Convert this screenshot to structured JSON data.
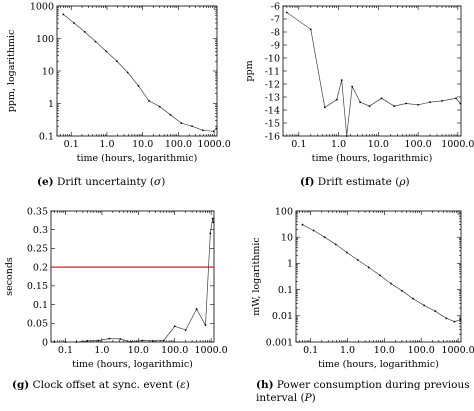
{
  "colors": {
    "line": "#404040",
    "frame": "#000000",
    "reference_line": "#cc2222"
  },
  "chart_data": [
    {
      "id": "e",
      "type": "line",
      "xscale": "log",
      "yscale": "log",
      "xlabel": "time (hours, logarithmic)",
      "ylabel": "ppm, logarithmic",
      "xlim": [
        0.04,
        1200
      ],
      "ylim": [
        0.1,
        1000
      ],
      "xticks": [
        "0.1",
        "1.0",
        "10.0",
        "100.0",
        "1000.0"
      ],
      "yticks": [
        "0.1",
        "1",
        "10",
        "100",
        "1000"
      ],
      "caption": {
        "letter": "(e)",
        "text": "Drift uncertainty (",
        "symbol": "σ",
        "end": ")"
      },
      "series": [
        {
          "x": [
            0.06,
            0.12,
            0.24,
            0.48,
            0.96,
            1.9,
            3.8,
            7.6,
            15,
            30,
            60,
            120,
            240,
            480,
            960,
            1150
          ],
          "y": [
            550,
            300,
            160,
            80,
            40,
            20,
            9,
            3.5,
            1.2,
            0.8,
            0.45,
            0.25,
            0.2,
            0.15,
            0.14,
            0.17
          ]
        }
      ]
    },
    {
      "id": "f",
      "type": "line",
      "xscale": "log",
      "yscale": "linear",
      "xlabel": "time (hours, logarithmic)",
      "ylabel": "ppm",
      "xlim": [
        0.04,
        1200
      ],
      "ylim": [
        -16,
        -6
      ],
      "xticks": [
        "0.1",
        "1.0",
        "10.0",
        "100.0",
        "1000.0"
      ],
      "yticks": [
        "-6",
        "-7",
        "-8",
        "-9",
        "-10",
        "-11",
        "-12",
        "-13",
        "-14",
        "-15",
        "-16"
      ],
      "caption": {
        "letter": "(f)",
        "text": "Drift estimate (",
        "symbol": "ρ",
        "end": ")"
      },
      "series": [
        {
          "x": [
            0.05,
            0.2,
            0.45,
            0.9,
            1.2,
            1.6,
            2.2,
            3.5,
            6,
            12,
            25,
            50,
            100,
            200,
            400,
            900,
            1150
          ],
          "y": [
            -6.5,
            -7.8,
            -13.8,
            -13.2,
            -11.7,
            -16.0,
            -12.2,
            -13.4,
            -13.7,
            -13.1,
            -13.7,
            -13.5,
            -13.6,
            -13.4,
            -13.3,
            -13.1,
            -13.5
          ]
        }
      ]
    },
    {
      "id": "g",
      "type": "line",
      "xscale": "log",
      "yscale": "linear",
      "xlabel": "time (hours, logarithmic)",
      "ylabel": "seconds",
      "xlim": [
        0.04,
        1200
      ],
      "ylim": [
        0,
        0.35
      ],
      "xticks": [
        "0.1",
        "1.0",
        "10.0",
        "100.0",
        "1000.0"
      ],
      "yticks": [
        "0",
        "0.05",
        "0.1",
        "0.15",
        "0.2",
        "0.25",
        "0.3",
        "0.35"
      ],
      "hline": 0.2,
      "caption": {
        "letter": "(g)",
        "text": "Clock offset at sync. event (",
        "symbol": "ε",
        "end": ")"
      },
      "series": [
        {
          "x": [
            0.05,
            0.1,
            0.2,
            0.4,
            0.8,
            1.6,
            3.2,
            6.4,
            12.8,
            25,
            50,
            100,
            200,
            400,
            700,
            950,
            1100,
            1150
          ],
          "y": [
            0.0,
            0.0,
            0.0,
            0.003,
            0.004,
            0.009,
            0.008,
            0.0,
            0.004,
            0.003,
            0.004,
            0.042,
            0.032,
            0.088,
            0.045,
            0.29,
            0.33,
            0.32
          ]
        }
      ]
    },
    {
      "id": "h",
      "type": "line",
      "xscale": "log",
      "yscale": "log",
      "xlabel": "time (hours, logarithmic)",
      "ylabel": "mW, logarithmic",
      "xlim": [
        0.04,
        1200
      ],
      "ylim": [
        0.001,
        100
      ],
      "xticks": [
        "0.1",
        "1.0",
        "10.0",
        "100.0",
        "1000.0"
      ],
      "yticks": [
        "0.001",
        "0.01",
        "0.1",
        "1",
        "10",
        "100"
      ],
      "caption": {
        "letter": "(h)",
        "text": "Power consumption during previous interval (",
        "symbol": "P",
        "end": ")"
      },
      "series": [
        {
          "x": [
            0.06,
            0.12,
            0.24,
            0.48,
            0.96,
            1.9,
            3.8,
            7.6,
            15,
            30,
            60,
            120,
            240,
            480,
            800,
            1150
          ],
          "y": [
            30,
            18,
            10,
            5.3,
            2.6,
            1.35,
            0.7,
            0.35,
            0.17,
            0.09,
            0.045,
            0.025,
            0.015,
            0.008,
            0.006,
            0.007
          ]
        }
      ]
    }
  ]
}
